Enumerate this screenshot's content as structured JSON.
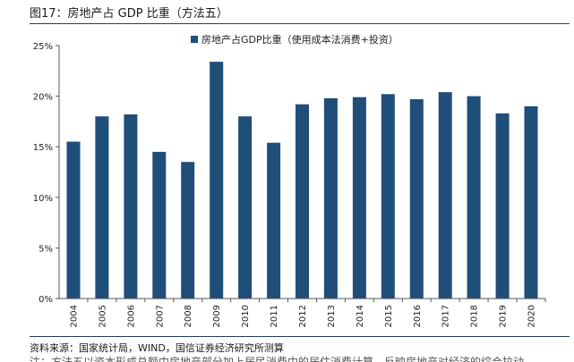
{
  "page": {
    "title": "图17：房地产占 GDP 比重（方法五）",
    "source": "资料来源：国家统计局，WIND，国信证券经济研究所测算",
    "cutoff_text": "注：方法五以资本形成总额中房地产部分加上居民消费中的居住消费计算，反映房地产对经济的综合拉动"
  },
  "colors": {
    "bar": "#1f4e79",
    "axis": "#555555",
    "rule": "#1f3d6a"
  },
  "chart_data": {
    "type": "bar",
    "categories": [
      "2004",
      "2005",
      "2006",
      "2007",
      "2008",
      "2009",
      "2010",
      "2011",
      "2012",
      "2013",
      "2014",
      "2015",
      "2016",
      "2017",
      "2018",
      "2019",
      "2020"
    ],
    "series": [
      {
        "name": "房地产占GDP比重（使用成本法消费+投资）",
        "values": [
          15.5,
          18.0,
          18.2,
          14.5,
          13.5,
          23.4,
          18.0,
          15.4,
          19.2,
          19.8,
          19.9,
          20.2,
          19.7,
          20.4,
          20.0,
          18.3,
          19.0
        ]
      }
    ],
    "yticks": [
      "0%",
      "5%",
      "10%",
      "15%",
      "20%",
      "25%"
    ],
    "ylim": [
      0,
      25
    ],
    "legend_position": "top",
    "grid": false
  }
}
